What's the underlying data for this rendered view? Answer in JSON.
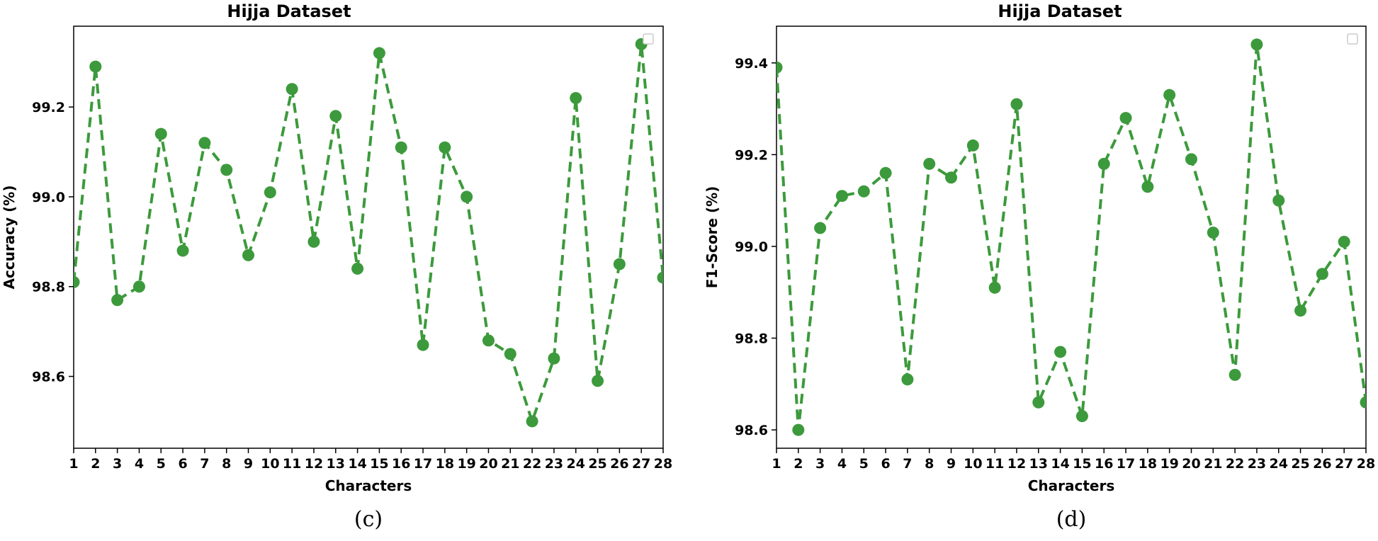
{
  "chart_data": [
    {
      "type": "line",
      "title": "Hijja Dataset",
      "xlabel": "Characters",
      "ylabel": "Accuracy (%)",
      "caption": "(c)",
      "x": [
        1,
        2,
        3,
        4,
        5,
        6,
        7,
        8,
        9,
        10,
        11,
        12,
        13,
        14,
        15,
        16,
        17,
        18,
        19,
        20,
        21,
        22,
        23,
        24,
        25,
        26,
        27,
        28
      ],
      "xticks": [
        "1",
        "2",
        "3",
        "4",
        "5",
        "6",
        "7",
        "8",
        "9",
        "10",
        "11",
        "12",
        "13",
        "14",
        "15",
        "16",
        "17",
        "18",
        "19",
        "20",
        "21",
        "22",
        "23",
        "24",
        "25",
        "26",
        "27",
        "28"
      ],
      "series": [
        {
          "values": [
            98.81,
            99.29,
            98.77,
            98.8,
            99.14,
            98.88,
            99.12,
            99.06,
            98.87,
            99.01,
            99.24,
            98.9,
            99.18,
            98.84,
            99.32,
            99.11,
            98.67,
            99.11,
            99.0,
            98.68,
            98.65,
            98.5,
            98.64,
            99.22,
            98.59,
            98.85,
            99.34,
            98.82
          ]
        }
      ],
      "xlim": [
        1,
        28
      ],
      "ylim": [
        98.44,
        99.38
      ],
      "yticks": [
        98.6,
        98.8,
        99.0,
        99.2
      ],
      "ytick_labels": [
        "98.6",
        "98.8",
        "99.0",
        "99.2"
      ],
      "grid": false,
      "legend": "top-right (empty)"
    },
    {
      "type": "line",
      "title": "Hijja Dataset",
      "xlabel": "Characters",
      "ylabel": "F1-Score (%)",
      "caption": "(d)",
      "x": [
        1,
        2,
        3,
        4,
        5,
        6,
        7,
        8,
        9,
        10,
        11,
        12,
        13,
        14,
        15,
        16,
        17,
        18,
        19,
        20,
        21,
        22,
        23,
        24,
        25,
        26,
        27,
        28
      ],
      "xticks": [
        "1",
        "2",
        "3",
        "4",
        "5",
        "6",
        "7",
        "8",
        "9",
        "10",
        "11",
        "12",
        "13",
        "14",
        "15",
        "16",
        "17",
        "18",
        "19",
        "20",
        "21",
        "22",
        "23",
        "24",
        "25",
        "26",
        "27",
        "28"
      ],
      "series": [
        {
          "values": [
            99.39,
            98.6,
            99.04,
            99.11,
            99.12,
            99.16,
            98.71,
            99.18,
            99.15,
            99.22,
            98.91,
            99.31,
            98.66,
            98.77,
            98.63,
            99.18,
            99.28,
            99.13,
            99.33,
            99.19,
            99.03,
            98.72,
            99.44,
            99.1,
            98.86,
            98.94,
            99.01,
            98.66
          ]
        }
      ],
      "xlim": [
        1,
        28
      ],
      "ylim": [
        98.56,
        99.48
      ],
      "yticks": [
        98.6,
        98.8,
        99.0,
        99.2,
        99.4
      ],
      "ytick_labels": [
        "98.6",
        "98.8",
        "99.0",
        "99.2",
        "99.4"
      ],
      "grid": false,
      "legend": "top-right (empty)"
    }
  ],
  "colors": {
    "series": "#3c9a3c",
    "axis": "#000000"
  }
}
